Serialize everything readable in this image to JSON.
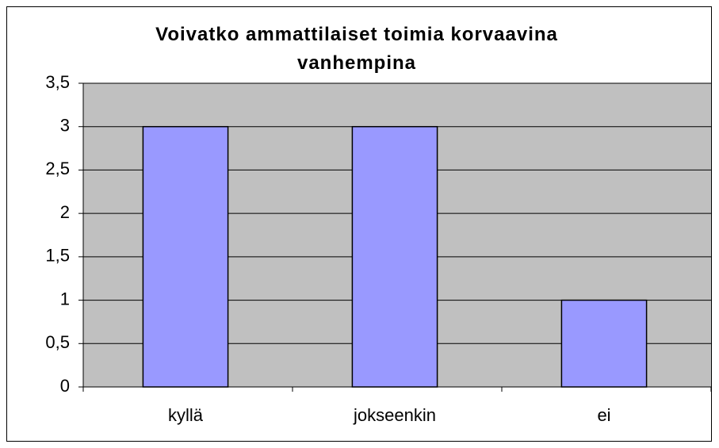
{
  "chart_data": {
    "type": "bar",
    "title": "Voivatko ammattilaiset toimia korvaavina vanhempina",
    "categories": [
      "kyllä",
      "jokseenkin",
      "ei"
    ],
    "values": [
      3,
      3,
      1
    ],
    "color": "#9999ff",
    "ylim": [
      0,
      3.5
    ],
    "yticks": [
      0,
      {
        "value": 0.5,
        "label": "0,5"
      },
      1,
      {
        "value": 1.5,
        "label": "1,5"
      },
      2,
      {
        "value": 2.5,
        "label": "2,5"
      },
      3,
      {
        "value": 3.5,
        "label": "3,5"
      }
    ],
    "grid": true
  }
}
